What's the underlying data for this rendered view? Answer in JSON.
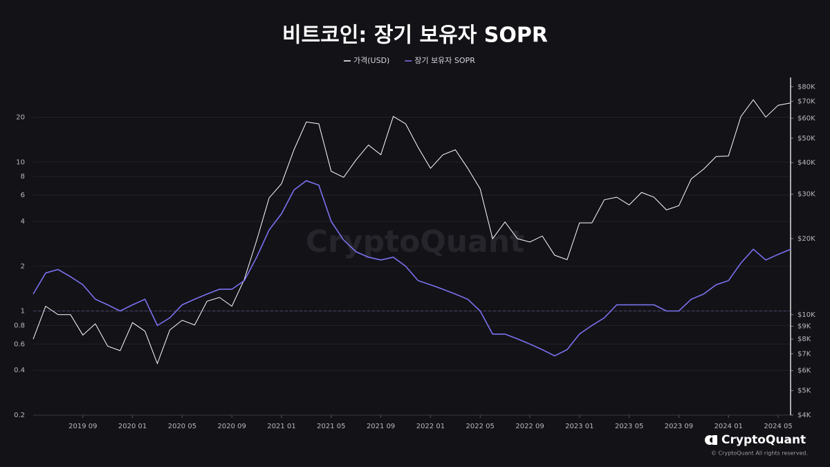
{
  "chart_data": {
    "type": "line",
    "title": "비트코인: 장기 보유자 SOPR",
    "watermark": "CryptoQuant",
    "brand": "CryptoQuant",
    "copyright": "© CryptoQuant All rights reserved.",
    "x": [
      "2019-05",
      "2019-06",
      "2019-07",
      "2019-08",
      "2019-09",
      "2019-10",
      "2019-11",
      "2019-12",
      "2020-01",
      "2020-02",
      "2020-03",
      "2020-04",
      "2020-05",
      "2020-06",
      "2020-07",
      "2020-08",
      "2020-09",
      "2020-10",
      "2020-11",
      "2020-12",
      "2021-01",
      "2021-02",
      "2021-03",
      "2021-04",
      "2021-05",
      "2021-06",
      "2021-07",
      "2021-08",
      "2021-09",
      "2021-10",
      "2021-11",
      "2021-12",
      "2022-01",
      "2022-02",
      "2022-03",
      "2022-04",
      "2022-05",
      "2022-06",
      "2022-07",
      "2022-08",
      "2022-09",
      "2022-10",
      "2022-11",
      "2022-12",
      "2023-01",
      "2023-02",
      "2023-03",
      "2023-04",
      "2023-05",
      "2023-06",
      "2023-07",
      "2023-08",
      "2023-09",
      "2023-10",
      "2023-11",
      "2023-12",
      "2024-01",
      "2024-02",
      "2024-03",
      "2024-04",
      "2024-05",
      "2024-06"
    ],
    "series": [
      {
        "name": "가격(USD)",
        "color": "#ffffff",
        "axis": "y2",
        "values": [
          8000,
          10800,
          10000,
          10000,
          8300,
          9200,
          7500,
          7200,
          9300,
          8600,
          6400,
          8700,
          9500,
          9100,
          11300,
          11700,
          10800,
          13800,
          19700,
          29000,
          33000,
          45000,
          58000,
          57000,
          37000,
          35000,
          41000,
          47000,
          43000,
          61000,
          57000,
          46000,
          38000,
          43000,
          45000,
          38000,
          31500,
          20000,
          23300,
          20000,
          19400,
          20500,
          17200,
          16500,
          23100,
          23100,
          28500,
          29200,
          27200,
          30500,
          29200,
          26000,
          27000,
          34500,
          37700,
          42300,
          42500,
          61000,
          71000,
          60600,
          67500,
          69000
        ]
      },
      {
        "name": "장기 보유자 SOPR",
        "color": "#7b72f0",
        "axis": "y",
        "values": [
          1.3,
          1.8,
          1.9,
          1.7,
          1.5,
          1.2,
          1.1,
          1.0,
          1.1,
          1.2,
          0.8,
          0.9,
          1.1,
          1.2,
          1.3,
          1.4,
          1.4,
          1.6,
          2.3,
          3.5,
          4.5,
          6.5,
          7.5,
          7.0,
          4.0,
          3.0,
          2.5,
          2.3,
          2.2,
          2.3,
          2.0,
          1.6,
          1.5,
          1.4,
          1.3,
          1.2,
          1.0,
          0.7,
          0.7,
          0.65,
          0.6,
          0.55,
          0.5,
          0.55,
          0.7,
          0.8,
          0.9,
          1.1,
          1.1,
          1.1,
          1.1,
          1.0,
          1.0,
          1.2,
          1.3,
          1.5,
          1.6,
          2.1,
          2.6,
          2.2,
          2.4,
          2.6
        ]
      }
    ],
    "xlim": [
      "2019-05",
      "2024-06"
    ],
    "xticks": [
      {
        "value": "2019-09",
        "label": "2019 09"
      },
      {
        "value": "2020-01",
        "label": "2020 01"
      },
      {
        "value": "2020-05",
        "label": "2020 05"
      },
      {
        "value": "2020-09",
        "label": "2020 09"
      },
      {
        "value": "2021-01",
        "label": "2021 01"
      },
      {
        "value": "2021-05",
        "label": "2021 05"
      },
      {
        "value": "2021-09",
        "label": "2021 09"
      },
      {
        "value": "2022-01",
        "label": "2022 01"
      },
      {
        "value": "2022-05",
        "label": "2022 05"
      },
      {
        "value": "2022-09",
        "label": "2022 09"
      },
      {
        "value": "2023-01",
        "label": "2023 01"
      },
      {
        "value": "2023-05",
        "label": "2023 05"
      },
      {
        "value": "2023-09",
        "label": "2023 09"
      },
      {
        "value": "2024-01",
        "label": "2024 01"
      },
      {
        "value": "2024-05",
        "label": "2024 05"
      }
    ],
    "ylim": [
      0.2,
      37
    ],
    "ylog": true,
    "yticks": [
      0.2,
      0.4,
      0.6,
      0.8,
      1,
      2,
      4,
      6,
      8,
      10,
      20
    ],
    "y2lim": [
      4000,
      87000
    ],
    "y2log": true,
    "y2ticks": [
      {
        "value": 4000,
        "label": "$4K"
      },
      {
        "value": 5000,
        "label": "$5K"
      },
      {
        "value": 6000,
        "label": "$6K"
      },
      {
        "value": 7000,
        "label": "$7K"
      },
      {
        "value": 8000,
        "label": "$8K"
      },
      {
        "value": 9000,
        "label": "$9K"
      },
      {
        "value": 10000,
        "label": "$10K"
      },
      {
        "value": 20000,
        "label": "$20K"
      },
      {
        "value": 30000,
        "label": "$30K"
      },
      {
        "value": 40000,
        "label": "$40K"
      },
      {
        "value": 50000,
        "label": "$50K"
      },
      {
        "value": 60000,
        "label": "$60K"
      },
      {
        "value": 70000,
        "label": "$70K"
      },
      {
        "value": 80000,
        "label": "$80K"
      }
    ],
    "grid": true,
    "reference_line": 1,
    "legend": "top"
  }
}
